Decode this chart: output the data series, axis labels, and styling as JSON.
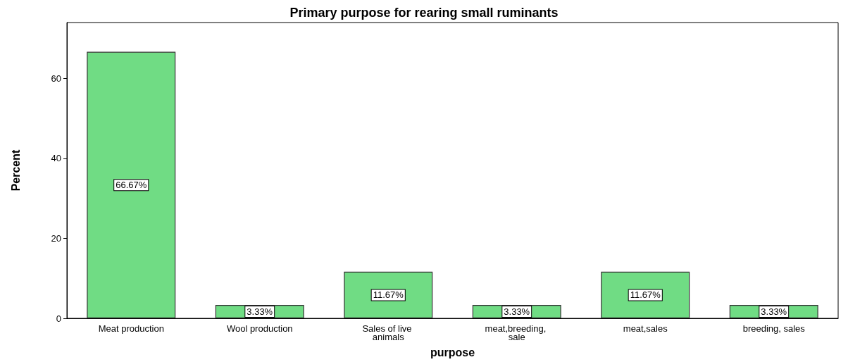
{
  "chart_data": {
    "type": "bar",
    "title": "Primary purpose for rearing small ruminants",
    "xlabel": "purpose",
    "ylabel": "Percent",
    "categories": [
      "Meat production",
      "Wool production",
      "Sales of live animals",
      "meat,breeding, sale",
      "meat,sales",
      "breeding, sales"
    ],
    "values": [
      66.67,
      3.33,
      11.67,
      3.33,
      11.67,
      3.33
    ],
    "value_labels": [
      "66.67%",
      "3.33%",
      "11.67%",
      "3.33%",
      "11.67%",
      "3.33%"
    ],
    "color": "#70dc84",
    "ylim": [
      0,
      74
    ],
    "yticks": [
      0,
      20,
      40,
      60
    ],
    "grid": false
  }
}
